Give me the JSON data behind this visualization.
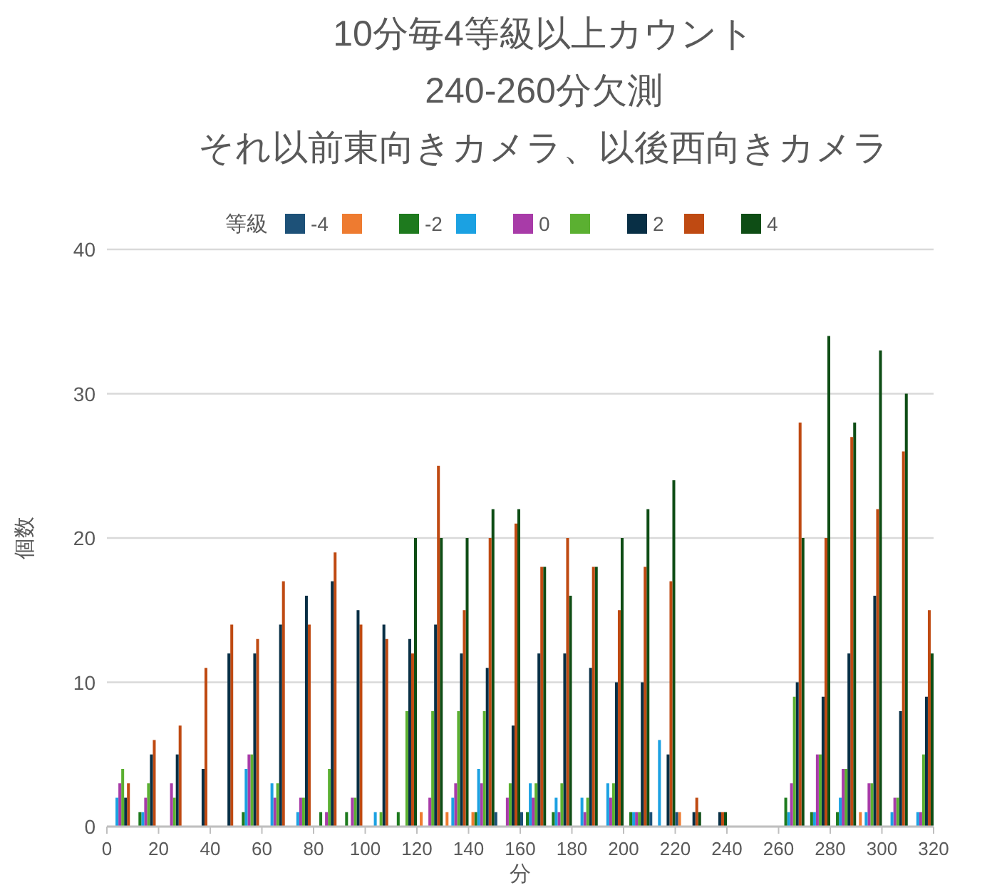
{
  "chart_data": {
    "type": "histogram",
    "title": "10分毎4等級以上カウント",
    "subtitle": "240-260分欠測",
    "xlabel": "分",
    "ylabel": "個数",
    "annotations": [
      "それ以前東向きカメラ、以後西向きカメラ"
    ],
    "legend_title": "等級",
    "legend": "top",
    "bins": [
      0,
      10,
      20,
      30,
      40,
      50,
      60,
      70,
      80,
      90,
      100,
      110,
      120,
      130,
      140,
      150,
      160,
      170,
      180,
      190,
      200,
      210,
      220,
      230,
      240,
      250,
      260,
      270,
      280,
      290,
      300,
      310,
      320
    ],
    "xlim": [
      0,
      320
    ],
    "xticks": [
      0,
      20,
      40,
      60,
      80,
      100,
      120,
      140,
      160,
      180,
      200,
      220,
      240,
      260,
      280,
      300,
      320
    ],
    "ylim": [
      0,
      40
    ],
    "yticks": [
      0,
      10,
      20,
      30,
      40
    ],
    "grid": "y",
    "series": [
      {
        "name": "-4",
        "color": "#1d5178",
        "values": [
          0,
          0,
          0,
          0,
          0,
          0,
          0,
          0,
          0,
          0,
          0,
          0,
          0,
          0,
          0,
          1,
          1,
          0,
          0,
          0,
          0,
          1,
          1,
          0,
          null,
          null,
          0,
          0,
          0,
          0,
          0,
          0
        ]
      },
      {
        "color": "#ee7b30",
        "values": [
          0,
          0,
          0,
          0,
          0,
          0,
          0,
          0,
          0,
          0,
          0,
          0,
          1,
          1,
          1,
          0,
          0,
          0,
          0,
          0,
          0,
          0,
          1,
          0,
          null,
          null,
          0,
          0,
          0,
          1,
          0,
          0
        ]
      },
      {
        "name": "-2",
        "color": "#1e7a1e",
        "values": [
          0,
          1,
          0,
          0,
          0,
          1,
          0,
          0,
          1,
          1,
          0,
          1,
          0,
          0,
          1,
          0,
          1,
          1,
          0,
          0,
          1,
          0,
          0,
          0,
          null,
          null,
          2,
          1,
          1,
          0,
          0,
          0
        ]
      },
      {
        "color": "#1ba1e2",
        "values": [
          2,
          1,
          0,
          0,
          0,
          4,
          3,
          1,
          0,
          0,
          1,
          0,
          0,
          2,
          4,
          0,
          3,
          2,
          2,
          3,
          1,
          6,
          0,
          0,
          null,
          null,
          1,
          1,
          2,
          1,
          1,
          1
        ]
      },
      {
        "name": "0",
        "color": "#a83ba8",
        "values": [
          3,
          2,
          3,
          0,
          0,
          5,
          2,
          2,
          1,
          2,
          0,
          0,
          2,
          3,
          3,
          2,
          2,
          1,
          1,
          2,
          1,
          0,
          0,
          0,
          null,
          null,
          3,
          5,
          4,
          3,
          2,
          1
        ]
      },
      {
        "color": "#5bb031",
        "values": [
          4,
          3,
          2,
          0,
          0,
          5,
          3,
          2,
          4,
          2,
          1,
          8,
          8,
          8,
          8,
          3,
          3,
          3,
          2,
          3,
          1,
          0,
          0,
          0,
          null,
          null,
          9,
          5,
          4,
          3,
          2,
          5
        ]
      },
      {
        "name": "2",
        "color": "#082f45",
        "values": [
          2,
          5,
          5,
          4,
          12,
          12,
          14,
          16,
          17,
          15,
          14,
          13,
          14,
          12,
          11,
          7,
          12,
          12,
          11,
          10,
          10,
          5,
          1,
          1,
          null,
          null,
          10,
          9,
          12,
          16,
          8,
          9
        ]
      },
      {
        "color": "#bf4a12",
        "values": [
          3,
          6,
          7,
          11,
          14,
          13,
          17,
          14,
          19,
          14,
          13,
          12,
          25,
          15,
          20,
          21,
          18,
          20,
          18,
          15,
          18,
          17,
          2,
          1,
          null,
          null,
          28,
          20,
          27,
          22,
          26,
          15
        ]
      },
      {
        "name": "4",
        "color": "#0e4d15",
        "values": [
          null,
          null,
          null,
          null,
          null,
          null,
          null,
          null,
          null,
          null,
          null,
          20,
          20,
          20,
          22,
          22,
          18,
          16,
          18,
          20,
          22,
          24,
          1,
          1,
          null,
          null,
          20,
          34,
          28,
          33,
          30,
          12
        ]
      }
    ]
  }
}
